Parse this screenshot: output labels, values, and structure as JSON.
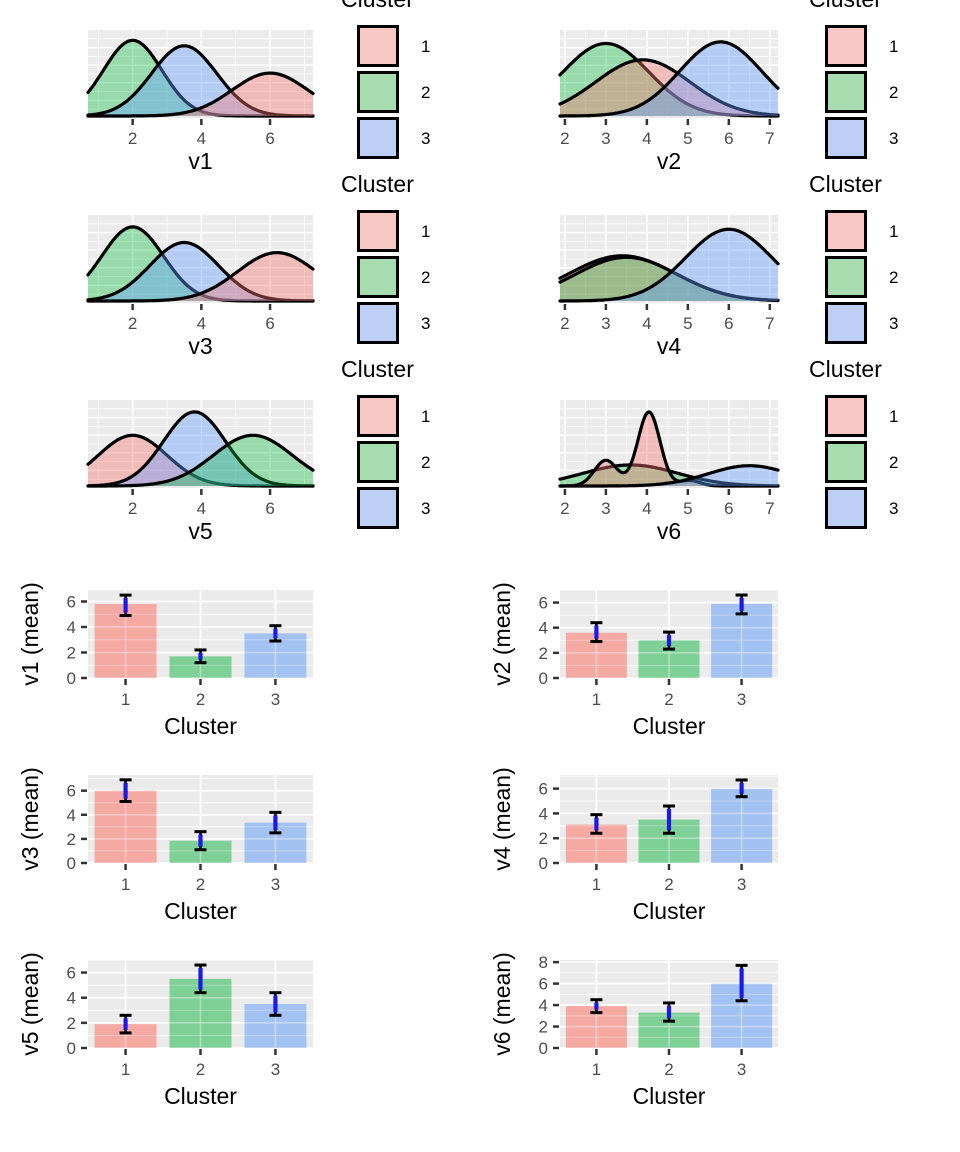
{
  "legend": {
    "title": "Cluster",
    "entries": [
      {
        "label": "1",
        "cluster": "1"
      },
      {
        "label": "2",
        "cluster": "2"
      },
      {
        "label": "3",
        "cluster": "3"
      }
    ]
  },
  "palette": {
    "panel_bg": "#EBEBEB",
    "grid_line": "#FFFFFF",
    "tick_mark": "#333333",
    "tick_text": "#4D4D4D",
    "title_text": "#000000",
    "curve_stroke": "#000000",
    "error_black": "#000000",
    "error_blue": "#1C1AE8",
    "density_fills": {
      "1": "rgba(248,118,109,0.40)",
      "2": "rgba(0,186,56,0.35)",
      "3": "rgba(97,156,255,0.40)"
    },
    "bar_fills": {
      "1": "#F5A9A3",
      "2": "#7FD096",
      "3": "#A4C2F1"
    },
    "legend_fills": {
      "1": "#F7C8C3",
      "2": "#A6DCAE",
      "3": "#BDCFF4"
    }
  },
  "chart_data": {
    "density_plots": [
      {
        "type": "density",
        "title": "v1",
        "x_ticks": [
          2,
          4,
          6
        ],
        "x_domain": [
          0.7,
          7.25
        ],
        "curves": [
          {
            "cluster": "2",
            "components": [
              {
                "mean": 2.0,
                "sd": 0.85,
                "peak": 0.97
              }
            ]
          },
          {
            "cluster": "3",
            "components": [
              {
                "mean": 3.5,
                "sd": 0.95,
                "peak": 0.9
              }
            ]
          },
          {
            "cluster": "1",
            "components": [
              {
                "mean": 6.0,
                "sd": 1.1,
                "peak": 0.55
              }
            ]
          }
        ]
      },
      {
        "type": "density",
        "title": "v2",
        "x_ticks": [
          2,
          3,
          4,
          5,
          6,
          7
        ],
        "x_domain": [
          1.88,
          7.2
        ],
        "curves": [
          {
            "cluster": "2",
            "components": [
              {
                "mean": 3.0,
                "sd": 1.05,
                "peak": 0.93
              }
            ]
          },
          {
            "cluster": "1",
            "components": [
              {
                "mean": 3.9,
                "sd": 1.15,
                "peak": 0.72
              }
            ]
          },
          {
            "cluster": "3",
            "components": [
              {
                "mean": 5.8,
                "sd": 1.0,
                "peak": 0.95
              }
            ]
          }
        ]
      },
      {
        "type": "density",
        "title": "v3",
        "x_ticks": [
          2,
          4,
          6
        ],
        "x_domain": [
          0.7,
          7.25
        ],
        "curves": [
          {
            "cluster": "2",
            "components": [
              {
                "mean": 2.0,
                "sd": 0.9,
                "peak": 0.95
              }
            ]
          },
          {
            "cluster": "3",
            "components": [
              {
                "mean": 3.5,
                "sd": 1.0,
                "peak": 0.75
              }
            ]
          },
          {
            "cluster": "1",
            "components": [
              {
                "mean": 6.2,
                "sd": 1.15,
                "peak": 0.62
              }
            ]
          }
        ]
      },
      {
        "type": "density",
        "title": "v4",
        "x_ticks": [
          2,
          3,
          4,
          5,
          6,
          7
        ],
        "x_domain": [
          1.88,
          7.2
        ],
        "curves": [
          {
            "cluster": "1",
            "components": [
              {
                "mean": 3.4,
                "sd": 1.3,
                "peak": 0.58
              }
            ]
          },
          {
            "cluster": "2",
            "components": [
              {
                "mean": 3.5,
                "sd": 1.25,
                "peak": 0.56
              }
            ]
          },
          {
            "cluster": "3",
            "components": [
              {
                "mean": 6.0,
                "sd": 1.05,
                "peak": 0.92
              }
            ]
          }
        ]
      },
      {
        "type": "density",
        "title": "v5",
        "x_ticks": [
          2,
          4,
          6
        ],
        "x_domain": [
          0.7,
          7.25
        ],
        "curves": [
          {
            "cluster": "1",
            "components": [
              {
                "mean": 2.0,
                "sd": 1.0,
                "peak": 0.65
              }
            ]
          },
          {
            "cluster": "3",
            "components": [
              {
                "mean": 3.8,
                "sd": 0.9,
                "peak": 0.95
              }
            ]
          },
          {
            "cluster": "2",
            "components": [
              {
                "mean": 5.5,
                "sd": 1.15,
                "peak": 0.65
              }
            ]
          }
        ]
      },
      {
        "type": "density",
        "title": "v6",
        "x_ticks": [
          2,
          3,
          4,
          5,
          6,
          7
        ],
        "x_domain": [
          1.88,
          7.2
        ],
        "curves": [
          {
            "cluster": "2",
            "components": [
              {
                "mean": 3.6,
                "sd": 1.15,
                "peak": 0.27
              }
            ]
          },
          {
            "cluster": "1",
            "components": [
              {
                "mean": 3.0,
                "sd": 0.28,
                "peak": 0.33
              },
              {
                "mean": 4.05,
                "sd": 0.27,
                "peak": 0.95
              },
              {
                "mean": 5.05,
                "sd": 0.25,
                "peak": 0.07
              }
            ]
          },
          {
            "cluster": "3",
            "components": [
              {
                "mean": 6.5,
                "sd": 1.0,
                "peak": 0.26
              }
            ]
          }
        ]
      }
    ],
    "bar_plots": [
      {
        "type": "bar",
        "ylabel": "v1 (mean)",
        "xlabel": "Cluster",
        "categories": [
          "1",
          "2",
          "3"
        ],
        "values": [
          5.8,
          1.7,
          3.5
        ],
        "err_low": [
          4.9,
          1.2,
          2.9
        ],
        "err_high": [
          6.5,
          2.2,
          4.1
        ],
        "y_ticks": [
          0,
          2,
          4,
          6
        ],
        "y_max": 6.9
      },
      {
        "type": "bar",
        "ylabel": "v2 (mean)",
        "xlabel": "Cluster",
        "categories": [
          "1",
          "2",
          "3"
        ],
        "values": [
          3.6,
          3.0,
          5.9
        ],
        "err_low": [
          2.9,
          2.3,
          5.1
        ],
        "err_high": [
          4.4,
          3.65,
          6.6
        ],
        "y_ticks": [
          0,
          2,
          4,
          6
        ],
        "y_max": 7.0
      },
      {
        "type": "bar",
        "ylabel": "v3 (mean)",
        "xlabel": "Cluster",
        "categories": [
          "1",
          "2",
          "3"
        ],
        "values": [
          6.0,
          1.85,
          3.35
        ],
        "err_low": [
          5.1,
          1.1,
          2.5
        ],
        "err_high": [
          6.9,
          2.6,
          4.2
        ],
        "y_ticks": [
          0,
          2,
          4,
          6
        ],
        "y_max": 7.3
      },
      {
        "type": "bar",
        "ylabel": "v4 (mean)",
        "xlabel": "Cluster",
        "categories": [
          "1",
          "2",
          "3"
        ],
        "values": [
          3.1,
          3.5,
          6.0
        ],
        "err_low": [
          2.4,
          2.4,
          5.35
        ],
        "err_high": [
          3.9,
          4.6,
          6.7
        ],
        "y_ticks": [
          0,
          2,
          4,
          6
        ],
        "y_max": 7.1
      },
      {
        "type": "bar",
        "ylabel": "v5 (mean)",
        "xlabel": "Cluster",
        "categories": [
          "1",
          "2",
          "3"
        ],
        "values": [
          1.9,
          5.5,
          3.5
        ],
        "err_low": [
          1.2,
          4.4,
          2.6
        ],
        "err_high": [
          2.6,
          6.6,
          4.4
        ],
        "y_ticks": [
          0,
          2,
          4,
          6
        ],
        "y_max": 7.0
      },
      {
        "type": "bar",
        "ylabel": "v6 (mean)",
        "xlabel": "Cluster",
        "categories": [
          "1",
          "2",
          "3"
        ],
        "values": [
          3.9,
          3.3,
          6.0
        ],
        "err_low": [
          3.3,
          2.5,
          4.4
        ],
        "err_high": [
          4.5,
          4.2,
          7.7
        ],
        "y_ticks": [
          0,
          2,
          4,
          6,
          8
        ],
        "y_max": 8.2
      }
    ]
  }
}
